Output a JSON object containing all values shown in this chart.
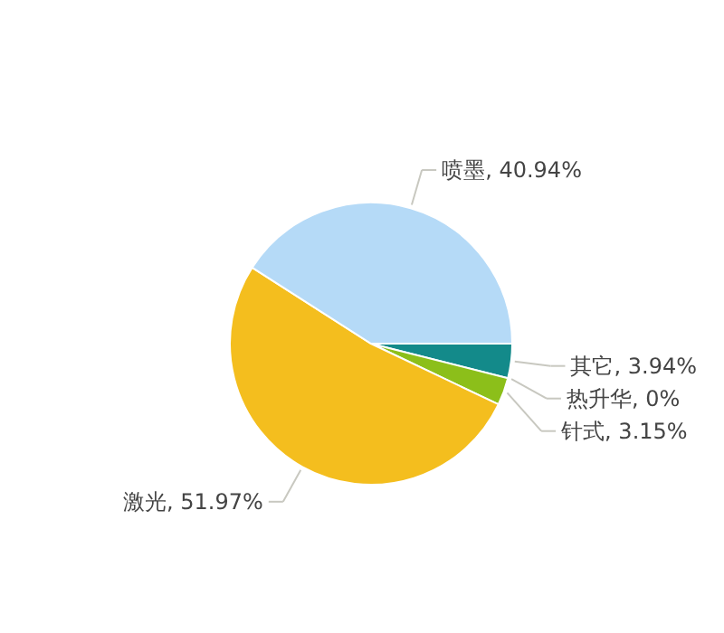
{
  "chart_data": {
    "type": "pie",
    "categories": [
      "其它",
      "热升华",
      "针式",
      "激光",
      "喷墨"
    ],
    "values": [
      3.94,
      0,
      3.15,
      51.97,
      40.94
    ],
    "colors": [
      "#138a8a",
      "#d9534f",
      "#8cbf1a",
      "#f4be1e",
      "#b5daf7"
    ],
    "value_labels": [
      "3.94%",
      "0%",
      "3.15%",
      "51.97%",
      "40.94%"
    ]
  }
}
